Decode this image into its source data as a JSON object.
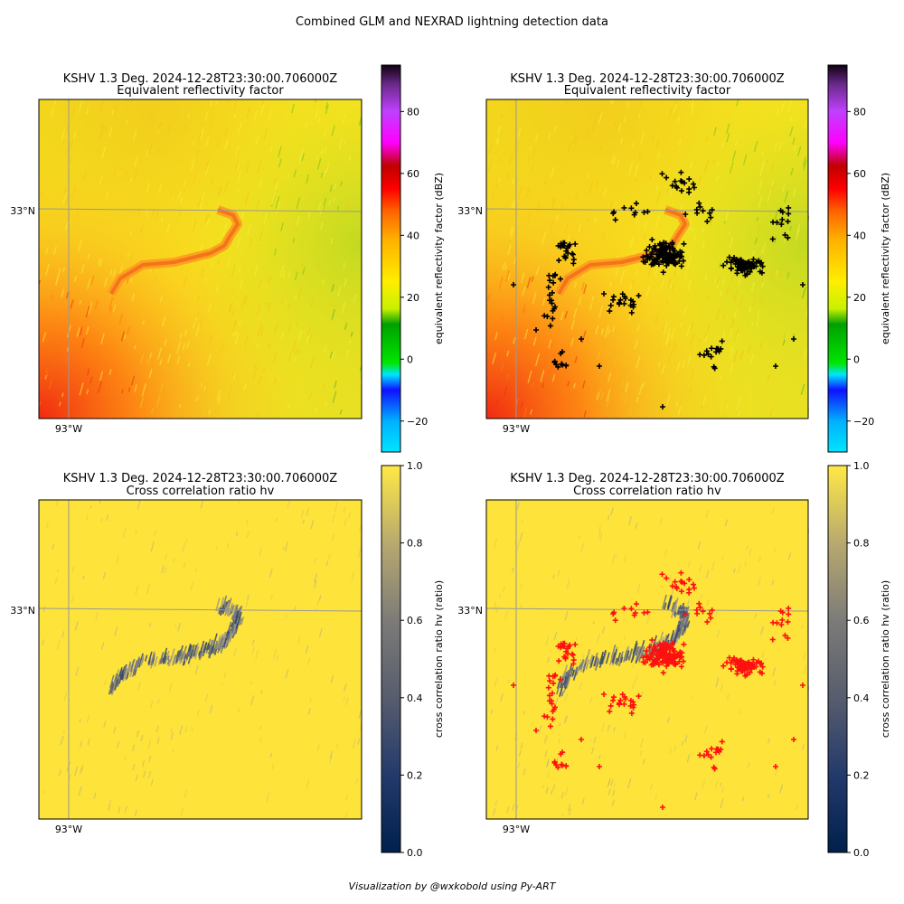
{
  "figure": {
    "suptitle": "Combined GLM and NEXRAD lightning detection data",
    "credit": "Visualization by @wxkobold using Py-ART"
  },
  "colors": {
    "base_yellow": "#f5dc1e",
    "cc_yellow": "#fde33a",
    "lightning_top": "#000000",
    "lightning_bottom": "#ff1010",
    "gridline": "#999999"
  },
  "chart_data": [
    {
      "id": "top-left",
      "type": "heatmap",
      "title": "KSHV 1.3 Deg. 2024-12-28T23:30:00.706000Z",
      "subtitle": "Equivalent reflectivity factor",
      "field": "reflectivity",
      "xtick": "93°W",
      "ytick": "33°N",
      "colorbar": {
        "label": "equivalent reflectivity factor (dBZ)",
        "range": [
          -30,
          95
        ],
        "ticks": [
          "−20",
          "0",
          "20",
          "40",
          "60",
          "80"
        ],
        "tick_values": [
          -20,
          0,
          20,
          40,
          60,
          80
        ]
      },
      "lightning": false
    },
    {
      "id": "top-right",
      "type": "heatmap",
      "title": "KSHV 1.3 Deg. 2024-12-28T23:30:00.706000Z",
      "subtitle": "Equivalent reflectivity factor",
      "field": "reflectivity",
      "xtick": "93°W",
      "ytick": "33°N",
      "colorbar": {
        "label": "equivalent reflectivity factor (dBZ)",
        "range": [
          -30,
          95
        ],
        "ticks": [
          "−20",
          "0",
          "20",
          "40",
          "60",
          "80"
        ],
        "tick_values": [
          -20,
          0,
          20,
          40,
          60,
          80
        ]
      },
      "lightning": true,
      "marker_color": "#000000"
    },
    {
      "id": "bottom-left",
      "type": "heatmap",
      "title": "KSHV 1.3 Deg. 2024-12-28T23:30:00.706000Z",
      "subtitle": "Cross correlation ratio hv",
      "field": "cross_correlation",
      "xtick": "93°W",
      "ytick": "33°N",
      "colorbar": {
        "label": "cross correlation ratio hv (ratio)",
        "range": [
          0,
          1
        ],
        "ticks": [
          "0.0",
          "0.2",
          "0.4",
          "0.6",
          "0.8",
          "1.0"
        ],
        "tick_values": [
          0,
          0.2,
          0.4,
          0.6,
          0.8,
          1.0
        ]
      },
      "lightning": false
    },
    {
      "id": "bottom-right",
      "type": "heatmap",
      "title": "KSHV 1.3 Deg. 2024-12-28T23:30:00.706000Z",
      "subtitle": "Cross correlation ratio hv",
      "field": "cross_correlation",
      "xtick": "93°W",
      "ytick": "33°N",
      "colorbar": {
        "label": "cross correlation ratio hv (ratio)",
        "range": [
          0,
          1
        ],
        "ticks": [
          "0.0",
          "0.2",
          "0.4",
          "0.6",
          "0.8",
          "1.0"
        ],
        "tick_values": [
          0,
          0.2,
          0.4,
          0.6,
          0.8,
          1.0
        ]
      },
      "lightning": true,
      "marker_color": "#ff1010"
    }
  ]
}
